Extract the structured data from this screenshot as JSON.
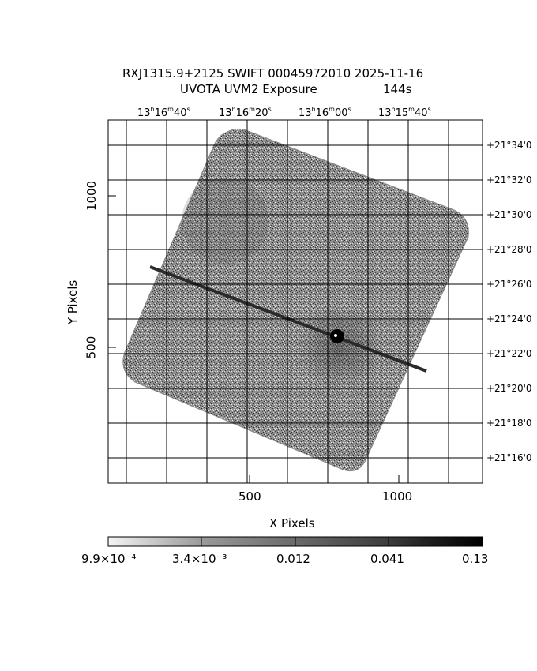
{
  "title": {
    "line1": "RXJ1315.9+2125 SWIFT 00045972010 2025-11-16",
    "line2": "UVOTA UVM2 Exposure",
    "exposure": "144s"
  },
  "axes": {
    "xlabel": "X Pixels",
    "ylabel": "Y Pixels",
    "x_ticks": [
      "500",
      "1000"
    ],
    "y_ticks": [
      "500",
      "1000"
    ],
    "ra_ticks": [
      {
        "h": "13",
        "m": "16",
        "s": "40"
      },
      {
        "h": "13",
        "m": "16",
        "s": "20"
      },
      {
        "h": "13",
        "m": "16",
        "s": "00"
      },
      {
        "h": "13",
        "m": "15",
        "s": "40"
      }
    ],
    "dec_ticks": [
      "+21°34'0",
      "+21°32'0",
      "+21°30'0",
      "+21°28'0",
      "+21°26'0",
      "+21°24'0",
      "+21°22'0",
      "+21°20'0",
      "+21°18'0",
      "+21°16'0"
    ]
  },
  "colorbar": {
    "labels": [
      "9.9×10⁻⁴",
      "3.4×10⁻³",
      "0.012",
      "0.041",
      "0.13"
    ]
  },
  "colors": {
    "ink": "#000000",
    "pixel": "#4a4a4a",
    "background": "#ffffff"
  }
}
